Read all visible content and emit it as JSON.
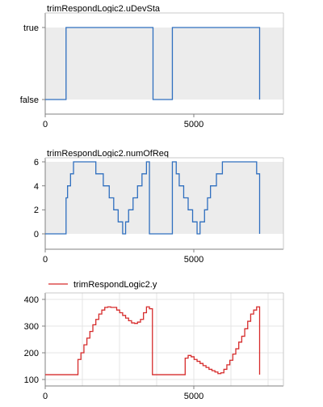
{
  "chart_data": [
    {
      "type": "line",
      "step": true,
      "title": "trimRespondLogic2.uDevSta",
      "xlim": [
        0,
        8000
      ],
      "ylim": [
        0,
        1
      ],
      "y_is_boolean": true,
      "xticks": [
        0,
        5000
      ],
      "xtick_labels": [
        "0",
        "5000"
      ],
      "yticks": [
        0,
        1
      ],
      "ytick_labels": [
        "false",
        "true"
      ],
      "band_color": "#ececec",
      "series": [
        {
          "color": "#2f6fbf",
          "x": [
            0,
            700,
            700,
            3620,
            3620,
            4270,
            4270,
            7200,
            7200
          ],
          "y": [
            0,
            0,
            1,
            1,
            0,
            0,
            1,
            1,
            0
          ]
        }
      ]
    },
    {
      "type": "line",
      "step": true,
      "title": "trimRespondLogic2.numOfReq",
      "xlim": [
        0,
        8000
      ],
      "ylim": [
        0,
        6
      ],
      "xticks": [
        0,
        5000
      ],
      "xtick_labels": [
        "0",
        "5000"
      ],
      "yticks": [
        0,
        2,
        4,
        6
      ],
      "ytick_labels": [
        "0",
        "2",
        "4",
        "6"
      ],
      "band_color": "#ececec",
      "series": [
        {
          "color": "#2f6fbf",
          "x": [
            0,
            700,
            700,
            750,
            750,
            850,
            850,
            950,
            950,
            1000,
            1000,
            1700,
            1700,
            1950,
            1950,
            2150,
            2150,
            2300,
            2300,
            2450,
            2450,
            2600,
            2600,
            2700,
            2700,
            2800,
            2800,
            2950,
            2950,
            3100,
            3100,
            3250,
            3250,
            3400,
            3400,
            3500,
            3500,
            3620,
            3620,
            4270,
            4270,
            4400,
            4400,
            4500,
            4500,
            4650,
            4650,
            4800,
            4800,
            4950,
            4950,
            5100,
            5100,
            5200,
            5200,
            5350,
            5350,
            5450,
            5450,
            5550,
            5550,
            5750,
            5750,
            5950,
            5950,
            6100,
            6100,
            6300,
            6300,
            6500,
            6500,
            7100,
            7100,
            7200,
            7200
          ],
          "y": [
            0,
            0,
            3,
            3,
            4,
            4,
            5,
            5,
            6,
            6,
            6,
            6,
            5,
            5,
            4,
            4,
            3,
            3,
            2,
            2,
            1,
            1,
            0,
            0,
            1,
            1,
            2,
            2,
            3,
            3,
            4,
            4,
            5,
            5,
            6,
            6,
            0,
            0,
            0,
            0,
            6,
            6,
            5,
            5,
            4,
            4,
            3,
            3,
            2,
            2,
            1,
            1,
            0,
            0,
            1,
            1,
            2,
            2,
            3,
            3,
            4,
            4,
            5,
            5,
            6,
            6,
            6,
            6,
            6,
            6,
            6,
            6,
            5,
            5,
            0
          ]
        }
      ]
    },
    {
      "type": "line",
      "step": true,
      "title": "",
      "xlim": [
        0,
        8000
      ],
      "ylim": [
        100,
        400
      ],
      "xticks": [
        0,
        5000
      ],
      "xtick_labels": [
        "0",
        "5000"
      ],
      "yticks": [
        100,
        200,
        300,
        400
      ],
      "ytick_labels": [
        "100",
        "200",
        "300",
        "400"
      ],
      "grid": true,
      "legend": "top-left",
      "series": [
        {
          "name": "trimRespondLogic2.y",
          "color": "#d62b2b",
          "x": [
            0,
            1100,
            1100,
            1200,
            1200,
            1300,
            1300,
            1400,
            1400,
            1500,
            1500,
            1600,
            1600,
            1700,
            1700,
            1800,
            1800,
            1900,
            1900,
            2000,
            2000,
            2100,
            2100,
            2200,
            2200,
            2400,
            2400,
            2500,
            2500,
            2600,
            2600,
            2700,
            2700,
            2800,
            2800,
            2900,
            2900,
            3000,
            3000,
            3100,
            3100,
            3200,
            3200,
            3300,
            3300,
            3400,
            3400,
            3500,
            3500,
            3600,
            3600,
            3650,
            3650,
            4700,
            4700,
            4800,
            4800,
            4900,
            4900,
            5000,
            5000,
            5100,
            5100,
            5200,
            5200,
            5300,
            5300,
            5400,
            5400,
            5500,
            5500,
            5600,
            5600,
            5700,
            5700,
            5800,
            5800,
            5900,
            5900,
            6000,
            6000,
            6100,
            6100,
            6200,
            6200,
            6300,
            6300,
            6400,
            6400,
            6500,
            6500,
            6600,
            6600,
            6700,
            6700,
            6800,
            6800,
            6900,
            6900,
            7000,
            7000,
            7100,
            7100,
            7200,
            7200
          ],
          "y": [
            118,
            118,
            175,
            175,
            200,
            200,
            230,
            230,
            255,
            255,
            280,
            280,
            305,
            305,
            325,
            325,
            345,
            345,
            360,
            360,
            370,
            370,
            372,
            372,
            370,
            370,
            360,
            360,
            350,
            350,
            340,
            340,
            330,
            330,
            320,
            320,
            312,
            312,
            310,
            310,
            315,
            315,
            325,
            325,
            350,
            350,
            372,
            372,
            365,
            365,
            118,
            118,
            118,
            118,
            180,
            180,
            190,
            190,
            185,
            185,
            175,
            175,
            168,
            168,
            160,
            160,
            152,
            152,
            145,
            145,
            138,
            138,
            133,
            133,
            128,
            128,
            122,
            122,
            125,
            125,
            138,
            138,
            155,
            155,
            172,
            172,
            195,
            195,
            215,
            215,
            240,
            240,
            262,
            262,
            290,
            290,
            318,
            318,
            345,
            345,
            360,
            360,
            372,
            372,
            118
          ]
        }
      ]
    }
  ]
}
